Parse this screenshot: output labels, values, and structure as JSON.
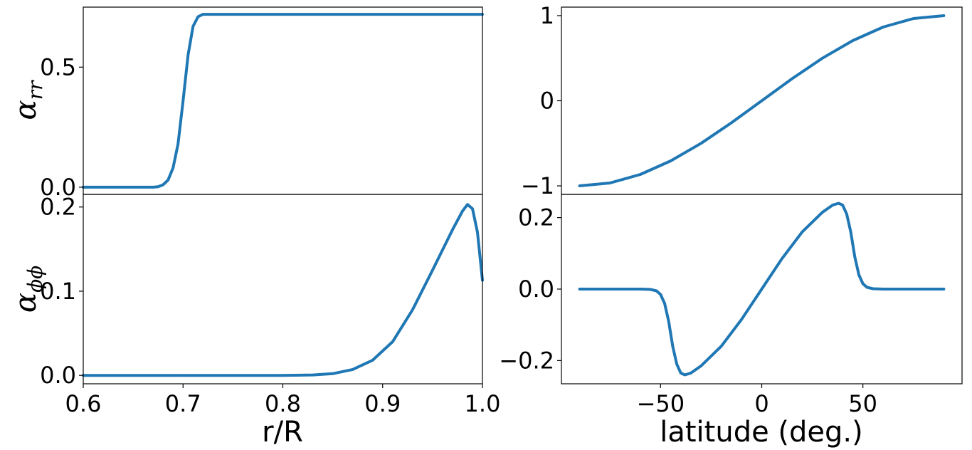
{
  "colors": {
    "series": "#1f77b4"
  },
  "chart_data": [
    {
      "panel": "top-left",
      "type": "line",
      "ylabel_base": "α",
      "ylabel_sub": "rr",
      "xlim": [
        0.6,
        1.0
      ],
      "ylim": [
        -0.03,
        0.75
      ],
      "x_ticks": [],
      "y_ticks": [
        0.0,
        0.5
      ],
      "y_tick_labels": [
        "0.0",
        "0.5"
      ],
      "x": [
        0.6,
        0.65,
        0.67,
        0.675,
        0.68,
        0.685,
        0.69,
        0.695,
        0.7,
        0.705,
        0.71,
        0.715,
        0.72,
        0.73,
        0.8,
        0.9,
        1.0
      ],
      "y": [
        0.0,
        0.0,
        0.0,
        0.002,
        0.01,
        0.03,
        0.08,
        0.18,
        0.36,
        0.55,
        0.67,
        0.71,
        0.72,
        0.72,
        0.72,
        0.72,
        0.72
      ]
    },
    {
      "panel": "top-right",
      "type": "line",
      "xlim": [
        -99,
        99
      ],
      "ylim": [
        -1.1,
        1.1
      ],
      "x_ticks": [],
      "y_ticks": [
        -1,
        0,
        1
      ],
      "y_tick_labels": [
        "−1",
        "0",
        "1"
      ],
      "x": [
        -90,
        -75,
        -60,
        -45,
        -30,
        -15,
        0,
        15,
        30,
        45,
        60,
        75,
        90
      ],
      "y": [
        -1.0,
        -0.966,
        -0.866,
        -0.707,
        -0.5,
        -0.259,
        0.0,
        0.259,
        0.5,
        0.707,
        0.866,
        0.966,
        1.0
      ]
    },
    {
      "panel": "bottom-left",
      "type": "line",
      "ylabel_base": "α",
      "ylabel_sub": "ϕϕ",
      "xlabel": "r/R",
      "xlim": [
        0.6,
        1.0
      ],
      "ylim": [
        -0.01,
        0.215
      ],
      "x_ticks": [
        0.6,
        0.7,
        0.8,
        0.9,
        1.0
      ],
      "x_tick_labels": [
        "0.6",
        "0.7",
        "0.8",
        "0.9",
        "1.0"
      ],
      "y_ticks": [
        0.0,
        0.1,
        0.2
      ],
      "y_tick_labels": [
        "0.0",
        "0.1",
        "0.2"
      ],
      "x": [
        0.6,
        0.8,
        0.83,
        0.85,
        0.87,
        0.89,
        0.91,
        0.93,
        0.95,
        0.97,
        0.98,
        0.985,
        0.99,
        0.995,
        1.0
      ],
      "y": [
        0.0,
        0.0,
        0.0005,
        0.002,
        0.007,
        0.018,
        0.04,
        0.078,
        0.125,
        0.173,
        0.195,
        0.203,
        0.198,
        0.17,
        0.113
      ]
    },
    {
      "panel": "bottom-right",
      "type": "line",
      "xlabel": "latitude (deg.)",
      "xlim": [
        -99,
        99
      ],
      "ylim": [
        -0.265,
        0.265
      ],
      "x_ticks": [
        -50,
        0,
        50
      ],
      "x_tick_labels": [
        "−50",
        "0",
        "50"
      ],
      "y_ticks": [
        -0.2,
        0.0,
        0.2
      ],
      "y_tick_labels": [
        "−0.2",
        "0.0",
        "0.2"
      ],
      "x": [
        -90,
        -60,
        -55,
        -52,
        -50,
        -48,
        -46,
        -44,
        -42,
        -40,
        -38,
        -35,
        -30,
        -20,
        -10,
        0,
        10,
        20,
        30,
        35,
        38,
        40,
        42,
        44,
        46,
        48,
        50,
        52,
        55,
        60,
        90
      ],
      "y": [
        0.0,
        0.0,
        -0.001,
        -0.005,
        -0.015,
        -0.04,
        -0.09,
        -0.16,
        -0.21,
        -0.235,
        -0.24,
        -0.235,
        -0.215,
        -0.16,
        -0.085,
        0.0,
        0.085,
        0.16,
        0.215,
        0.235,
        0.24,
        0.235,
        0.21,
        0.16,
        0.09,
        0.04,
        0.015,
        0.005,
        0.001,
        0.0,
        0.0
      ]
    }
  ]
}
